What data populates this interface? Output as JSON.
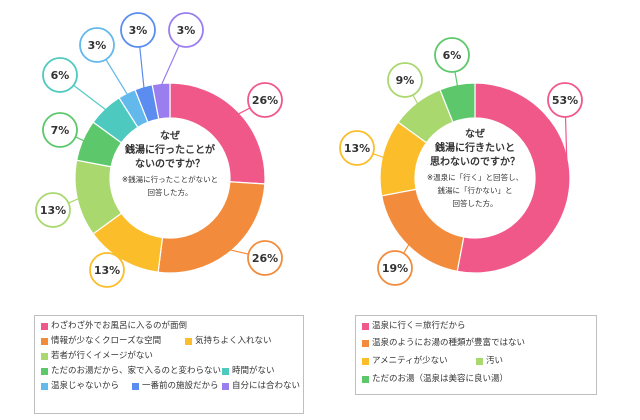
{
  "chart_data": [
    {
      "type": "pie",
      "style": "donut",
      "question_lines": [
        "なぜ",
        "銭湯に行ったことが",
        "ないのですか？"
      ],
      "note_lines": [
        "※銭湯に行ったことがないと",
        "回答した方。"
      ],
      "categories": [
        "わざわざ外でお風呂に入るのが面倒",
        "情報が少なくクローズな空間",
        "気持ちよく入れない",
        "若者が行くイメージがない",
        "ただのお湯だから、家で入るのと変わらない",
        "時間がない",
        "温泉じゃないから",
        "一番前の施設だから",
        "自分には合わない"
      ],
      "values": [
        26,
        26,
        13,
        13,
        7,
        6,
        3,
        3,
        3
      ],
      "value_labels": [
        "26%",
        "26%",
        "13%",
        "13%",
        "7%",
        "6%",
        "3%",
        "3%",
        "3%"
      ],
      "colors": [
        "#f0588a",
        "#f28c3c",
        "#fbbd2a",
        "#a9d86e",
        "#5cc86b",
        "#4dc9c0",
        "#63b8ec",
        "#5b8df0",
        "#9a7ef0"
      ]
    },
    {
      "type": "pie",
      "style": "donut",
      "question_lines": [
        "なぜ",
        "銭湯に行きたいと",
        "思わないのですか？"
      ],
      "note_lines": [
        "※温泉に「行く」と回答し、",
        "銭湯に「行かない」と",
        "回答した方。"
      ],
      "categories": [
        "温泉に行く＝旅行だから",
        "温泉のようにお湯の種類が豊富ではない",
        "アメニティが少ない",
        "汚い",
        "ただのお湯（温泉は美容に良い湯）"
      ],
      "values": [
        53,
        19,
        13,
        9,
        6
      ],
      "value_labels": [
        "53%",
        "19%",
        "13%",
        "9%",
        "6%"
      ],
      "colors": [
        "#f0588a",
        "#f28c3c",
        "#fbbd2a",
        "#a9d86e",
        "#5cc86b"
      ]
    }
  ]
}
